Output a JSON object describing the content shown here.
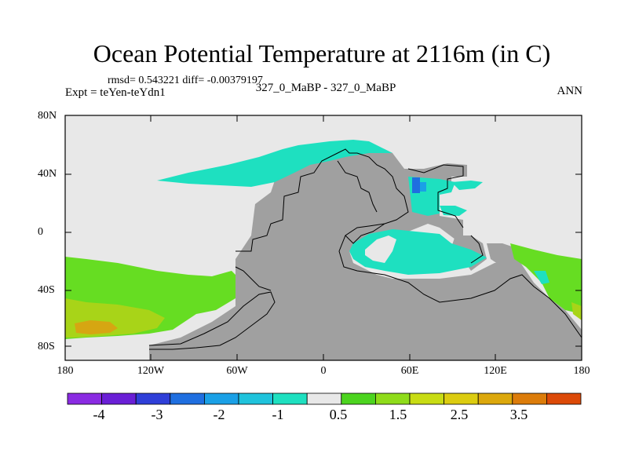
{
  "title": "Ocean Potential Temperature at 2116m (in C)",
  "stats_line": "rmsd= 0.543221 diff= -0.00379197",
  "expt_line": "Expt = teYen-teYdn1",
  "case_line": "327_0_MaBP - 327_0_MaBP",
  "season": "ANN",
  "lat_labels": [
    "80N",
    "40N",
    "0",
    "40S",
    "80S"
  ],
  "lon_labels": [
    "180",
    "120W",
    "60W",
    "0",
    "60E",
    "120E",
    "180"
  ],
  "colorbar": {
    "labels": [
      "-4",
      "-3",
      "-2",
      "-1",
      "0.5",
      "1.5",
      "2.5",
      "3.5"
    ],
    "colors": [
      "#8a2be2",
      "#6a1fd6",
      "#2f3fd8",
      "#1f6fe0",
      "#1aa0e6",
      "#1fc3dc",
      "#1ee0c0",
      "#e8e8e8",
      "#4cd41f",
      "#8fdc1a",
      "#c8dc14",
      "#dccc10",
      "#dca80c",
      "#dc7c0a",
      "#dc4a08"
    ]
  },
  "colors": {
    "land": "#a0a0a0",
    "missing": "#e8e8e8",
    "cyan": "#1ee0c0",
    "green": "#66dd22",
    "yellow_green": "#a8d418",
    "orange": "#d6a612",
    "blue": "#1f6fe0"
  }
}
